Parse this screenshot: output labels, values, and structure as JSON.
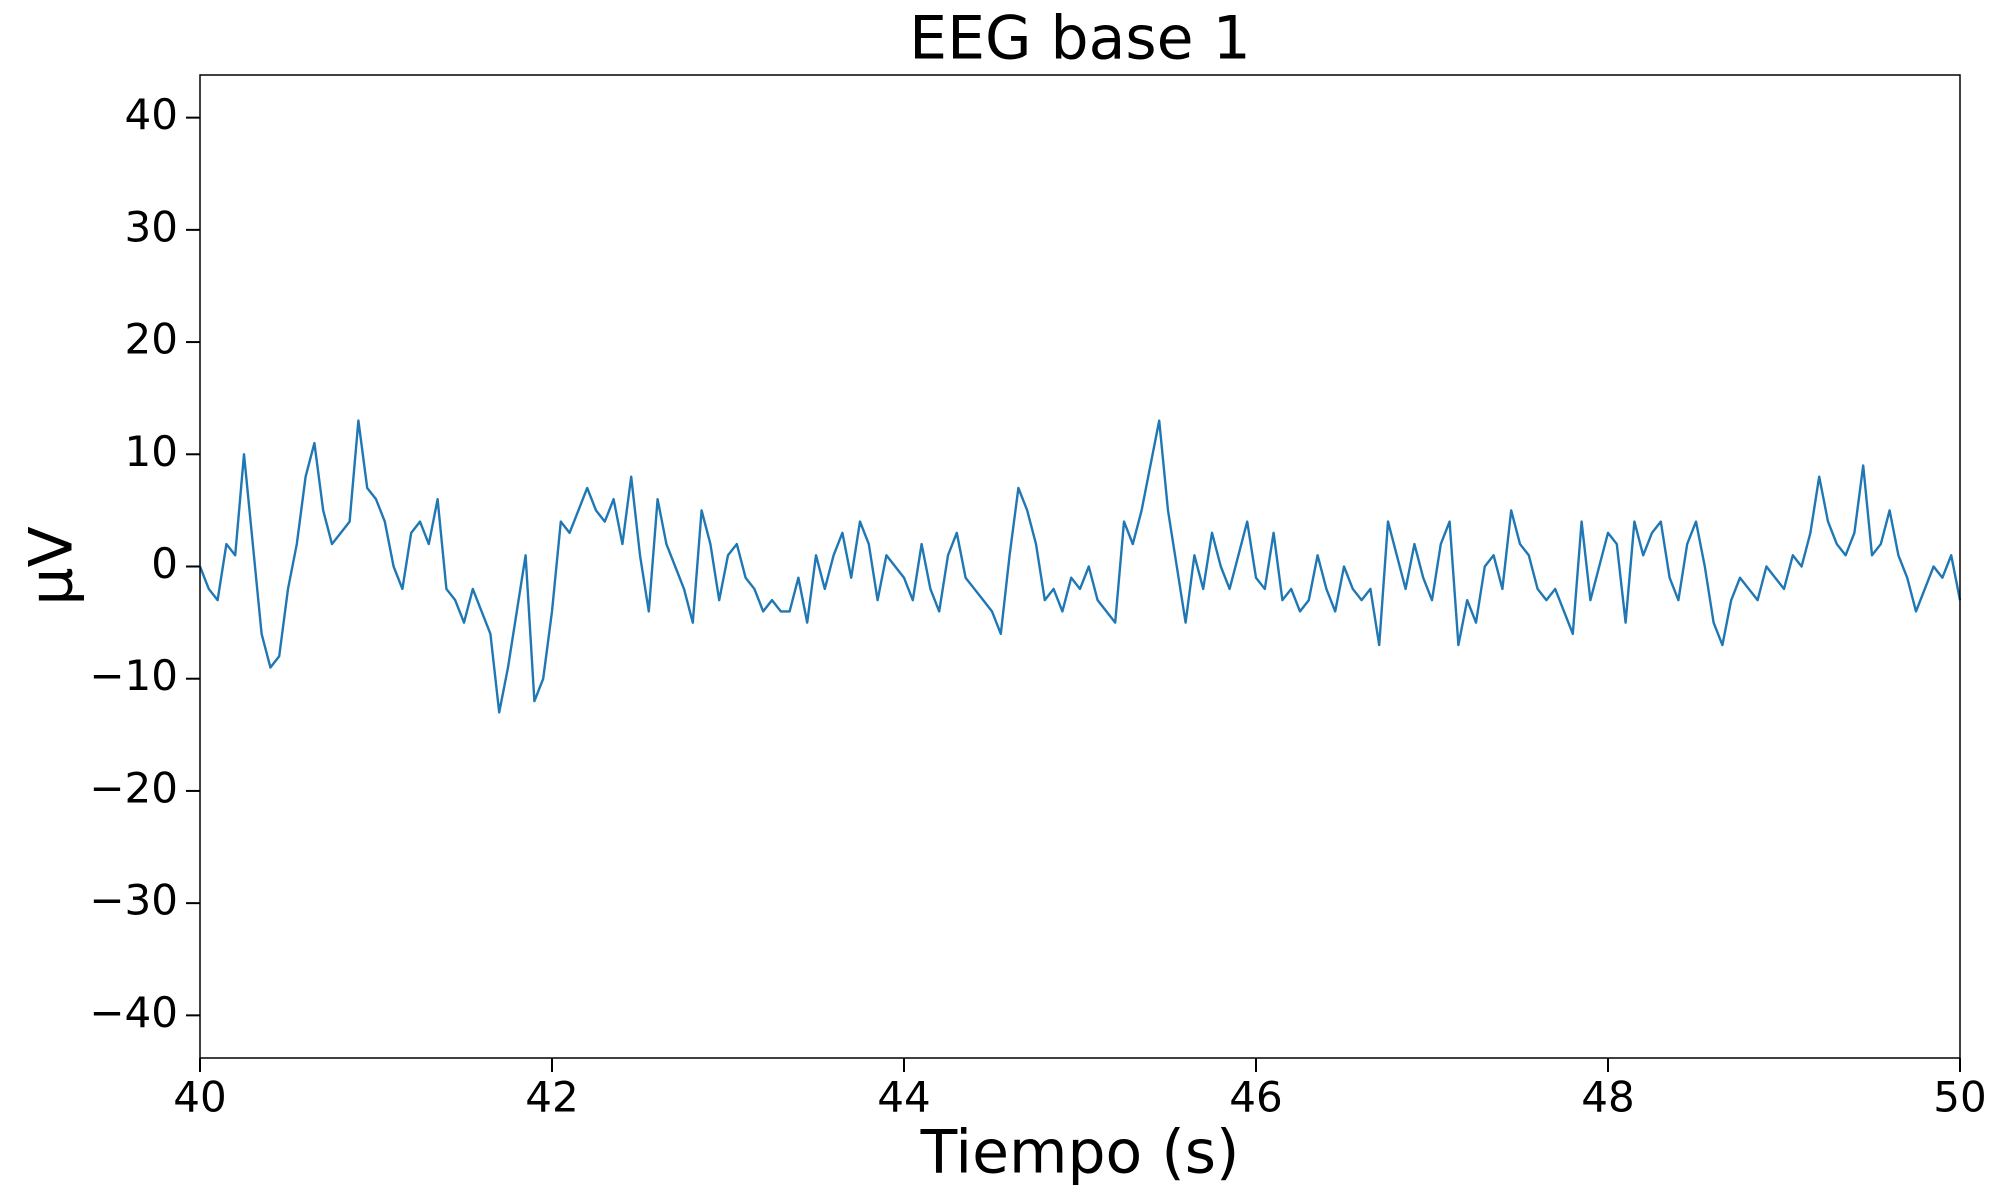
{
  "chart_data": {
    "type": "line",
    "title": "EEG base 1",
    "x_label": "Tiempo (s)",
    "y_label": "µV",
    "color": "#1f77b4",
    "xlim": [
      40,
      50
    ],
    "xticks": [
      40,
      42,
      44,
      46,
      48,
      50
    ],
    "ylim": [
      -43.8,
      43.8
    ],
    "yticks": [
      {
        "value": -40,
        "label": "−40"
      },
      {
        "value": -30,
        "label": "−30"
      },
      {
        "value": -20,
        "label": "−20"
      },
      {
        "value": -10,
        "label": "−10"
      },
      0,
      10,
      20,
      30,
      40
    ],
    "x": [
      40.0,
      40.05,
      40.1,
      40.15,
      40.2,
      40.25,
      40.3,
      40.35,
      40.4,
      40.45,
      40.5,
      40.55,
      40.6,
      40.65,
      40.7,
      40.75,
      40.8,
      40.85,
      40.9,
      40.95,
      41.0,
      41.05,
      41.1,
      41.15,
      41.2,
      41.25,
      41.3,
      41.35,
      41.4,
      41.45,
      41.5,
      41.55,
      41.6,
      41.65,
      41.7,
      41.75,
      41.8,
      41.85,
      41.9,
      41.95,
      42.0,
      42.05,
      42.1,
      42.15,
      42.2,
      42.25,
      42.3,
      42.35,
      42.4,
      42.45,
      42.5,
      42.55,
      42.6,
      42.65,
      42.7,
      42.75,
      42.8,
      42.85,
      42.9,
      42.95,
      43.0,
      43.05,
      43.1,
      43.15,
      43.2,
      43.25,
      43.3,
      43.35,
      43.4,
      43.45,
      43.5,
      43.55,
      43.6,
      43.65,
      43.7,
      43.75,
      43.8,
      43.85,
      43.9,
      43.95,
      44.0,
      44.05,
      44.1,
      44.15,
      44.2,
      44.25,
      44.3,
      44.35,
      44.4,
      44.45,
      44.5,
      44.55,
      44.6,
      44.65,
      44.7,
      44.75,
      44.8,
      44.85,
      44.9,
      44.95,
      45.0,
      45.05,
      45.1,
      45.15,
      45.2,
      45.25,
      45.3,
      45.35,
      45.4,
      45.45,
      45.5,
      45.55,
      45.6,
      45.65,
      45.7,
      45.75,
      45.8,
      45.85,
      45.9,
      45.95,
      46.0,
      46.05,
      46.1,
      46.15,
      46.2,
      46.25,
      46.3,
      46.35,
      46.4,
      46.45,
      46.5,
      46.55,
      46.6,
      46.65,
      46.7,
      46.75,
      46.8,
      46.85,
      46.9,
      46.95,
      47.0,
      47.05,
      47.1,
      47.15,
      47.2,
      47.25,
      47.3,
      47.35,
      47.4,
      47.45,
      47.5,
      47.55,
      47.6,
      47.65,
      47.7,
      47.75,
      47.8,
      47.85,
      47.9,
      47.95,
      48.0,
      48.05,
      48.1,
      48.15,
      48.2,
      48.25,
      48.3,
      48.35,
      48.4,
      48.45,
      48.5,
      48.55,
      48.6,
      48.65,
      48.7,
      48.75,
      48.8,
      48.85,
      48.9,
      48.95,
      49.0,
      49.05,
      49.1,
      49.15,
      49.2,
      49.25,
      49.3,
      49.35,
      49.4,
      49.45,
      49.5,
      49.55,
      49.6,
      49.65,
      49.7,
      49.75,
      49.8,
      49.85,
      49.9,
      49.95,
      50.0
    ],
    "values": [
      0,
      -2,
      -3,
      2,
      1,
      10,
      2,
      -6,
      -9,
      -8,
      -2,
      2,
      8,
      11,
      5,
      2,
      3,
      4,
      13,
      7,
      6,
      4,
      0,
      -2,
      3,
      4,
      2,
      6,
      -2,
      -3,
      -5,
      -2,
      -4,
      -6,
      -13,
      -9,
      -4,
      1,
      -12,
      -10,
      -4,
      4,
      3,
      5,
      7,
      5,
      4,
      6,
      2,
      8,
      1,
      -4,
      6,
      2,
      0,
      -2,
      -5,
      5,
      2,
      -3,
      1,
      2,
      -1,
      -2,
      -4,
      -3,
      -4,
      -4,
      -1,
      -5,
      1,
      -2,
      1,
      3,
      -1,
      4,
      2,
      -3,
      1,
      0,
      -1,
      -3,
      2,
      -2,
      -4,
      1,
      3,
      -1,
      -2,
      -3,
      -4,
      -6,
      1,
      7,
      5,
      2,
      -3,
      -2,
      -4,
      -1,
      -2,
      0,
      -3,
      -4,
      -5,
      4,
      2,
      5,
      9,
      13,
      5,
      0,
      -5,
      1,
      -2,
      3,
      0,
      -2,
      1,
      4,
      -1,
      -2,
      3,
      -3,
      -2,
      -4,
      -3,
      1,
      -2,
      -4,
      0,
      -2,
      -3,
      -2,
      -7,
      4,
      1,
      -2,
      2,
      -1,
      -3,
      2,
      4,
      -7,
      -3,
      -5,
      0,
      1,
      -2,
      5,
      2,
      1,
      -2,
      -3,
      -2,
      -4,
      -6,
      4,
      -3,
      0,
      3,
      2,
      -5,
      4,
      1,
      3,
      4,
      -1,
      -3,
      2,
      4,
      0,
      -5,
      -7,
      -3,
      -1,
      -2,
      -3,
      0,
      -1,
      -2,
      1,
      0,
      3,
      8,
      4,
      2,
      1,
      3,
      9,
      1,
      2,
      5,
      1,
      -1,
      -4,
      -2,
      0,
      -1,
      1,
      -3
    ]
  }
}
